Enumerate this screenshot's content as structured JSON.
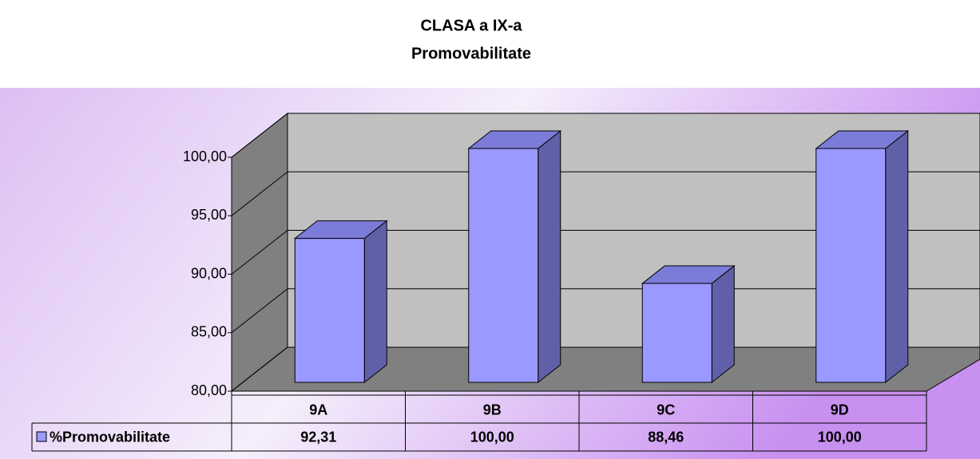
{
  "chart_data": {
    "type": "bar3d",
    "title": "CLASA a IX-a",
    "subtitle": "Promovabilitate",
    "categories": [
      "9A",
      "9B",
      "9C",
      "9D"
    ],
    "series": [
      {
        "name": "%Promovabilitate",
        "color": "#9999ff",
        "values": [
          92.31,
          100,
          88.46,
          100
        ],
        "value_labels": [
          "92,31",
          "100,00",
          "88,46",
          "100,00"
        ]
      }
    ],
    "ylim": [
      80,
      100
    ],
    "yticks": [
      {
        "value": 80,
        "label": "80,00"
      },
      {
        "value": 85,
        "label": "85,00"
      },
      {
        "value": 90,
        "label": "90,00"
      },
      {
        "value": 95,
        "label": "95,00"
      },
      {
        "value": 100,
        "label": "100,00"
      }
    ],
    "grid": true,
    "legend": "bottom-left"
  }
}
